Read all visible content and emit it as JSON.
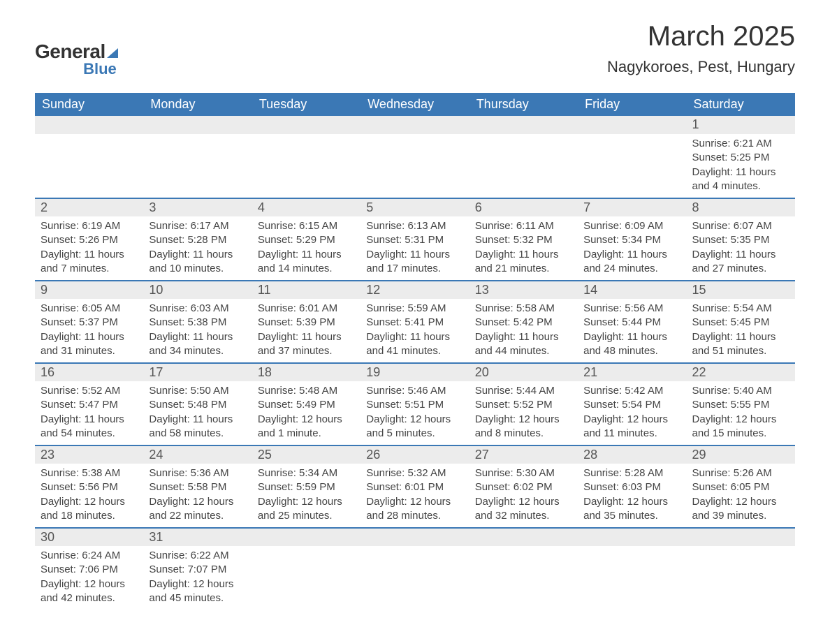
{
  "logo": {
    "word1": "General",
    "word2": "Blue"
  },
  "title": "March 2025",
  "subtitle": "Nagykoroes, Pest, Hungary",
  "colors": {
    "header_bg": "#3b78b5",
    "header_text": "#ffffff",
    "daynum_bg": "#ececec",
    "row_border": "#3b78b5",
    "text": "#444444",
    "background": "#ffffff"
  },
  "week_start": "Sunday",
  "day_headers": [
    "Sunday",
    "Monday",
    "Tuesday",
    "Wednesday",
    "Thursday",
    "Friday",
    "Saturday"
  ],
  "weeks": [
    [
      null,
      null,
      null,
      null,
      null,
      null,
      {
        "n": "1",
        "sunrise": "Sunrise: 6:21 AM",
        "sunset": "Sunset: 5:25 PM",
        "daylight": "Daylight: 11 hours and 4 minutes."
      }
    ],
    [
      {
        "n": "2",
        "sunrise": "Sunrise: 6:19 AM",
        "sunset": "Sunset: 5:26 PM",
        "daylight": "Daylight: 11 hours and 7 minutes."
      },
      {
        "n": "3",
        "sunrise": "Sunrise: 6:17 AM",
        "sunset": "Sunset: 5:28 PM",
        "daylight": "Daylight: 11 hours and 10 minutes."
      },
      {
        "n": "4",
        "sunrise": "Sunrise: 6:15 AM",
        "sunset": "Sunset: 5:29 PM",
        "daylight": "Daylight: 11 hours and 14 minutes."
      },
      {
        "n": "5",
        "sunrise": "Sunrise: 6:13 AM",
        "sunset": "Sunset: 5:31 PM",
        "daylight": "Daylight: 11 hours and 17 minutes."
      },
      {
        "n": "6",
        "sunrise": "Sunrise: 6:11 AM",
        "sunset": "Sunset: 5:32 PM",
        "daylight": "Daylight: 11 hours and 21 minutes."
      },
      {
        "n": "7",
        "sunrise": "Sunrise: 6:09 AM",
        "sunset": "Sunset: 5:34 PM",
        "daylight": "Daylight: 11 hours and 24 minutes."
      },
      {
        "n": "8",
        "sunrise": "Sunrise: 6:07 AM",
        "sunset": "Sunset: 5:35 PM",
        "daylight": "Daylight: 11 hours and 27 minutes."
      }
    ],
    [
      {
        "n": "9",
        "sunrise": "Sunrise: 6:05 AM",
        "sunset": "Sunset: 5:37 PM",
        "daylight": "Daylight: 11 hours and 31 minutes."
      },
      {
        "n": "10",
        "sunrise": "Sunrise: 6:03 AM",
        "sunset": "Sunset: 5:38 PM",
        "daylight": "Daylight: 11 hours and 34 minutes."
      },
      {
        "n": "11",
        "sunrise": "Sunrise: 6:01 AM",
        "sunset": "Sunset: 5:39 PM",
        "daylight": "Daylight: 11 hours and 37 minutes."
      },
      {
        "n": "12",
        "sunrise": "Sunrise: 5:59 AM",
        "sunset": "Sunset: 5:41 PM",
        "daylight": "Daylight: 11 hours and 41 minutes."
      },
      {
        "n": "13",
        "sunrise": "Sunrise: 5:58 AM",
        "sunset": "Sunset: 5:42 PM",
        "daylight": "Daylight: 11 hours and 44 minutes."
      },
      {
        "n": "14",
        "sunrise": "Sunrise: 5:56 AM",
        "sunset": "Sunset: 5:44 PM",
        "daylight": "Daylight: 11 hours and 48 minutes."
      },
      {
        "n": "15",
        "sunrise": "Sunrise: 5:54 AM",
        "sunset": "Sunset: 5:45 PM",
        "daylight": "Daylight: 11 hours and 51 minutes."
      }
    ],
    [
      {
        "n": "16",
        "sunrise": "Sunrise: 5:52 AM",
        "sunset": "Sunset: 5:47 PM",
        "daylight": "Daylight: 11 hours and 54 minutes."
      },
      {
        "n": "17",
        "sunrise": "Sunrise: 5:50 AM",
        "sunset": "Sunset: 5:48 PM",
        "daylight": "Daylight: 11 hours and 58 minutes."
      },
      {
        "n": "18",
        "sunrise": "Sunrise: 5:48 AM",
        "sunset": "Sunset: 5:49 PM",
        "daylight": "Daylight: 12 hours and 1 minute."
      },
      {
        "n": "19",
        "sunrise": "Sunrise: 5:46 AM",
        "sunset": "Sunset: 5:51 PM",
        "daylight": "Daylight: 12 hours and 5 minutes."
      },
      {
        "n": "20",
        "sunrise": "Sunrise: 5:44 AM",
        "sunset": "Sunset: 5:52 PM",
        "daylight": "Daylight: 12 hours and 8 minutes."
      },
      {
        "n": "21",
        "sunrise": "Sunrise: 5:42 AM",
        "sunset": "Sunset: 5:54 PM",
        "daylight": "Daylight: 12 hours and 11 minutes."
      },
      {
        "n": "22",
        "sunrise": "Sunrise: 5:40 AM",
        "sunset": "Sunset: 5:55 PM",
        "daylight": "Daylight: 12 hours and 15 minutes."
      }
    ],
    [
      {
        "n": "23",
        "sunrise": "Sunrise: 5:38 AM",
        "sunset": "Sunset: 5:56 PM",
        "daylight": "Daylight: 12 hours and 18 minutes."
      },
      {
        "n": "24",
        "sunrise": "Sunrise: 5:36 AM",
        "sunset": "Sunset: 5:58 PM",
        "daylight": "Daylight: 12 hours and 22 minutes."
      },
      {
        "n": "25",
        "sunrise": "Sunrise: 5:34 AM",
        "sunset": "Sunset: 5:59 PM",
        "daylight": "Daylight: 12 hours and 25 minutes."
      },
      {
        "n": "26",
        "sunrise": "Sunrise: 5:32 AM",
        "sunset": "Sunset: 6:01 PM",
        "daylight": "Daylight: 12 hours and 28 minutes."
      },
      {
        "n": "27",
        "sunrise": "Sunrise: 5:30 AM",
        "sunset": "Sunset: 6:02 PM",
        "daylight": "Daylight: 12 hours and 32 minutes."
      },
      {
        "n": "28",
        "sunrise": "Sunrise: 5:28 AM",
        "sunset": "Sunset: 6:03 PM",
        "daylight": "Daylight: 12 hours and 35 minutes."
      },
      {
        "n": "29",
        "sunrise": "Sunrise: 5:26 AM",
        "sunset": "Sunset: 6:05 PM",
        "daylight": "Daylight: 12 hours and 39 minutes."
      }
    ],
    [
      {
        "n": "30",
        "sunrise": "Sunrise: 6:24 AM",
        "sunset": "Sunset: 7:06 PM",
        "daylight": "Daylight: 12 hours and 42 minutes."
      },
      {
        "n": "31",
        "sunrise": "Sunrise: 6:22 AM",
        "sunset": "Sunset: 7:07 PM",
        "daylight": "Daylight: 12 hours and 45 minutes."
      },
      null,
      null,
      null,
      null,
      null
    ]
  ]
}
